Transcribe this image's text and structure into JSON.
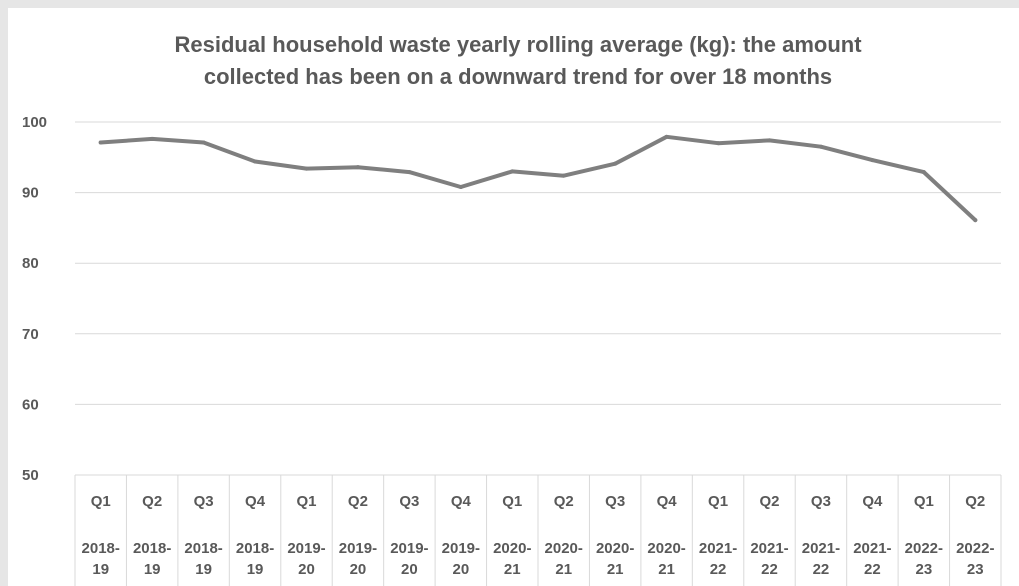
{
  "chart_data": {
    "type": "line",
    "title": "Residual household waste yearly rolling average (kg): the amount collected has been on a downward trend for over 18 months",
    "title_lines": [
      "Residual household waste yearly rolling average (kg): the amount",
      "collected has been on a downward trend for over 18 months"
    ],
    "xlabel": "",
    "ylabel": "",
    "ylim": [
      50,
      100
    ],
    "yticks": [
      50,
      60,
      70,
      80,
      90,
      100
    ],
    "grid": true,
    "legend": "none",
    "categories": [
      {
        "quarter": "Q1",
        "year_top": "2018-",
        "year_bottom": "19"
      },
      {
        "quarter": "Q2",
        "year_top": "2018-",
        "year_bottom": "19"
      },
      {
        "quarter": "Q3",
        "year_top": "2018-",
        "year_bottom": "19"
      },
      {
        "quarter": "Q4",
        "year_top": "2018-",
        "year_bottom": "19"
      },
      {
        "quarter": "Q1",
        "year_top": "2019-",
        "year_bottom": "20"
      },
      {
        "quarter": "Q2",
        "year_top": "2019-",
        "year_bottom": "20"
      },
      {
        "quarter": "Q3",
        "year_top": "2019-",
        "year_bottom": "20"
      },
      {
        "quarter": "Q4",
        "year_top": "2019-",
        "year_bottom": "20"
      },
      {
        "quarter": "Q1",
        "year_top": "2020-",
        "year_bottom": "21"
      },
      {
        "quarter": "Q2",
        "year_top": "2020-",
        "year_bottom": "21"
      },
      {
        "quarter": "Q3",
        "year_top": "2020-",
        "year_bottom": "21"
      },
      {
        "quarter": "Q4",
        "year_top": "2020-",
        "year_bottom": "21"
      },
      {
        "quarter": "Q1",
        "year_top": "2021-",
        "year_bottom": "22"
      },
      {
        "quarter": "Q2",
        "year_top": "2021-",
        "year_bottom": "22"
      },
      {
        "quarter": "Q3",
        "year_top": "2021-",
        "year_bottom": "22"
      },
      {
        "quarter": "Q4",
        "year_top": "2021-",
        "year_bottom": "22"
      },
      {
        "quarter": "Q1",
        "year_top": "2022-",
        "year_bottom": "23"
      },
      {
        "quarter": "Q2",
        "year_top": "2022-",
        "year_bottom": "23"
      }
    ],
    "series": [
      {
        "values": [
          97.1,
          97.6,
          97.1,
          94.4,
          93.4,
          93.6,
          92.9,
          90.8,
          93.0,
          92.4,
          94.1,
          97.9,
          97.0,
          97.4,
          96.5,
          94.6,
          92.9,
          86.1
        ]
      }
    ],
    "colors": {
      "line": "#7f7f7f",
      "grid": "#d9d9d9",
      "text": "#595959",
      "frame_bg": "#ffffff",
      "page_bg": "#e6e6e6"
    }
  }
}
